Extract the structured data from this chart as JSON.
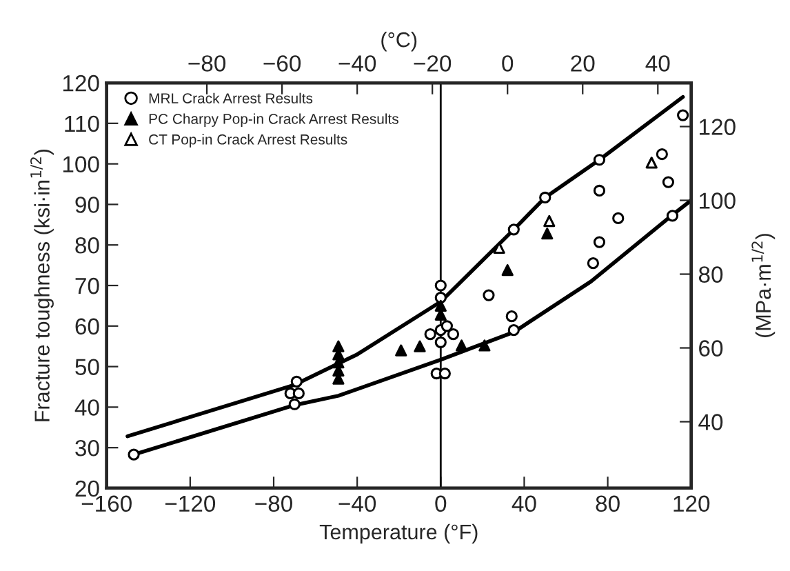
{
  "chart_data": {
    "type": "scatter",
    "xlabel": "Temperature (°F)",
    "ylabel": "Fracture toughness (ksi·in$^{1/2}$)",
    "y2label": "(MPa·m$^{1/2}$)",
    "x2label": "(°C)",
    "xlim": [
      -160,
      120
    ],
    "xticks": [
      -160,
      -120,
      -80,
      -40,
      0,
      40,
      80,
      120
    ],
    "ylim": [
      20,
      120
    ],
    "yticks": [
      20,
      30,
      40,
      50,
      60,
      70,
      80,
      90,
      100,
      110,
      120
    ],
    "x2lim": [
      -106.67,
      48.89
    ],
    "x2ticks": [
      -80,
      -60,
      -40,
      -20,
      0,
      20,
      40
    ],
    "y2lim": [
      21.98,
      131.86
    ],
    "y2ticks": [
      40,
      60,
      80,
      100,
      120
    ],
    "grid": false,
    "legend": "top left",
    "ref_lines": [
      {
        "axis": "x",
        "value": 0,
        "color": "#000000"
      }
    ],
    "series": [
      {
        "name": "MRL Crack Arrest Results",
        "marker": "circle",
        "color": "#ffffff",
        "x": [
          -147,
          -69,
          -72,
          -68,
          -70,
          0,
          0,
          -5,
          0,
          3,
          6,
          0,
          -2,
          2,
          35,
          50,
          76,
          116,
          23,
          34,
          35,
          73,
          76,
          85,
          76,
          106,
          109,
          111
        ],
        "values": [
          28.3,
          46.3,
          43.4,
          43.4,
          40.7,
          70,
          67,
          58,
          59,
          60,
          58,
          56,
          48.3,
          48.3,
          83.8,
          91.7,
          101,
          112,
          67.6,
          62.4,
          59,
          75.5,
          80.7,
          86.6,
          93.4,
          102.4,
          95.5,
          87.2
        ]
      },
      {
        "name": "PC Charpy Pop-in Crack Arrest Results",
        "marker": "triangle",
        "color": "#000000",
        "x": [
          -49,
          -49,
          -49,
          -49,
          -49,
          -19,
          -10,
          0,
          0,
          10,
          21,
          32,
          51
        ],
        "values": [
          55,
          53,
          51,
          49,
          47,
          54,
          55,
          65,
          62.8,
          55.2,
          55.2,
          73.8,
          82.8
        ]
      },
      {
        "name": "CT Pop-in Crack Arrest Results",
        "marker": "triangle",
        "color": "#ffffff",
        "x": [
          28,
          52,
          101
        ],
        "values": [
          79.3,
          85.9,
          100.3
        ]
      },
      {
        "type": "line",
        "marker": "none",
        "color": "#000000",
        "x": [
          -150,
          -70,
          -40,
          0,
          35,
          50,
          76,
          116
        ],
        "values": [
          32.8,
          45.5,
          53,
          66,
          83.8,
          91.7,
          101,
          116.5
        ]
      },
      {
        "type": "line",
        "marker": "none",
        "color": "#000000",
        "x": [
          -147,
          -70,
          -49,
          0,
          35,
          72,
          110,
          120
        ],
        "values": [
          28.3,
          40.5,
          42.8,
          51.7,
          58.5,
          71,
          87,
          91
        ]
      }
    ]
  }
}
